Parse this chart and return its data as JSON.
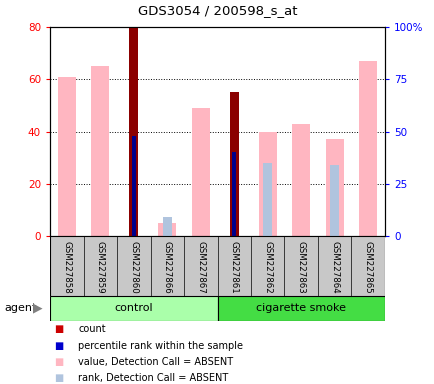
{
  "title": "GDS3054 / 200598_s_at",
  "samples": [
    "GSM227858",
    "GSM227859",
    "GSM227860",
    "GSM227866",
    "GSM227867",
    "GSM227861",
    "GSM227862",
    "GSM227863",
    "GSM227864",
    "GSM227865"
  ],
  "value_absent": [
    61,
    65,
    null,
    5,
    49,
    null,
    40,
    43,
    37,
    67
  ],
  "rank_absent": [
    null,
    null,
    null,
    9,
    null,
    null,
    35,
    null,
    34,
    null
  ],
  "count": [
    null,
    null,
    80,
    null,
    null,
    55,
    null,
    null,
    null,
    null
  ],
  "percentile": [
    null,
    null,
    48,
    null,
    null,
    40,
    null,
    null,
    null,
    null
  ],
  "count_color": "#8B0000",
  "percentile_color": "#00008B",
  "value_absent_color": "#FFB6C1",
  "rank_absent_color": "#B0C4DE",
  "ylim_left": [
    0,
    80
  ],
  "ylim_right": [
    0,
    100
  ],
  "yticks_left": [
    0,
    20,
    40,
    60,
    80
  ],
  "yticks_right": [
    0,
    25,
    50,
    75,
    100
  ],
  "yticklabels_right": [
    "0",
    "25",
    "50",
    "75",
    "100%"
  ],
  "control_label": "control",
  "smoke_label": "cigarette smoke",
  "agent_label": "agent",
  "legend_items": [
    {
      "color": "#CC0000",
      "label": "count"
    },
    {
      "color": "#0000CC",
      "label": "percentile rank within the sample"
    },
    {
      "color": "#FFB6C1",
      "label": "value, Detection Call = ABSENT"
    },
    {
      "color": "#B0C4DE",
      "label": "rank, Detection Call = ABSENT"
    }
  ],
  "control_bg": "#AAFFAA",
  "smoke_bg": "#44DD44",
  "xlabel_area_bg": "#C8C8C8"
}
